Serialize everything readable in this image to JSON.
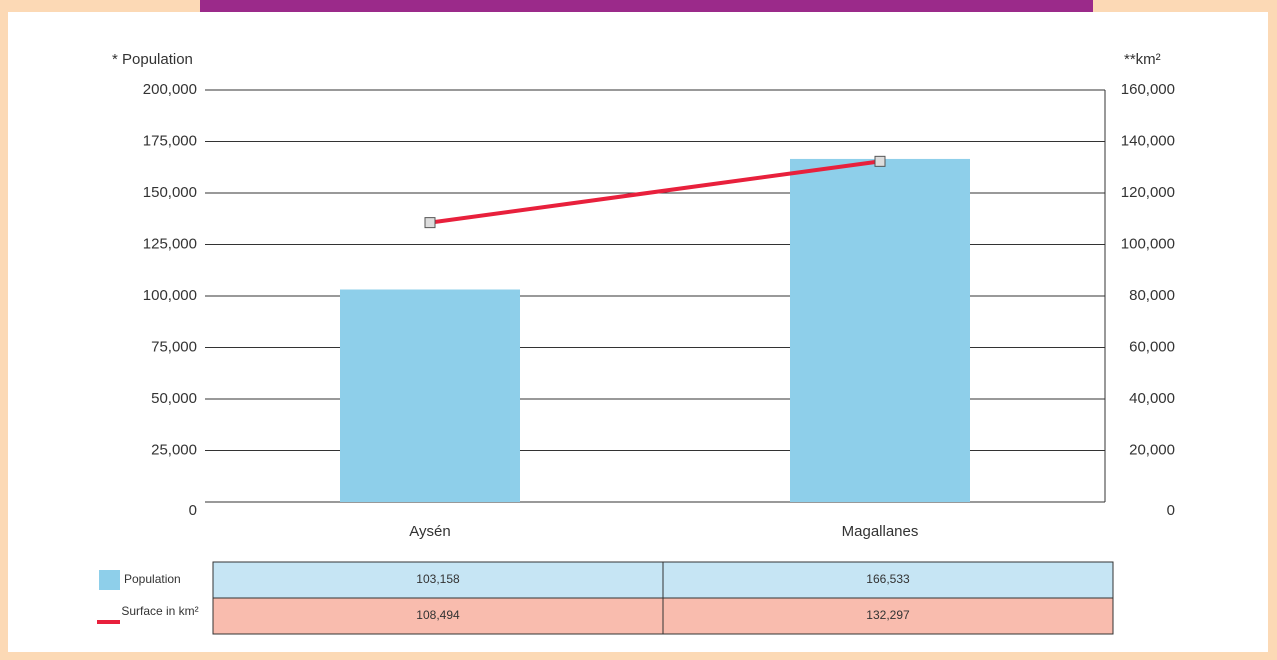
{
  "chart_data": {
    "type": "bar",
    "ylabel": "* Population",
    "y2label": "**km²",
    "categories": [
      "Aysén",
      "Magallanes"
    ],
    "series": [
      {
        "name": "Population",
        "type": "bar",
        "color": "#8ecfea",
        "values": [
          103158,
          166533
        ],
        "value_labels": [
          "103,158",
          "166,533"
        ]
      },
      {
        "name": "Surface in km²",
        "type": "line",
        "axis": "y2",
        "color": "#e8203c",
        "values": [
          108494,
          132297
        ],
        "value_labels": [
          "108,494",
          "132,297"
        ]
      }
    ],
    "ylim": [
      0,
      200000
    ],
    "yticks": [
      0,
      {
        "value": 25000,
        "label": "25,000"
      },
      {
        "value": 50000,
        "label": "50,000"
      },
      {
        "value": 75000,
        "label": "75,000"
      },
      {
        "value": 100000,
        "label": "100,000"
      },
      {
        "value": 125000,
        "label": "125,000"
      },
      {
        "value": 150000,
        "label": "150,000"
      },
      {
        "value": 175000,
        "label": "175,000"
      },
      {
        "value": 200000,
        "label": "200,000"
      }
    ],
    "y2lim": [
      0,
      160000
    ],
    "y2ticks": [
      0,
      {
        "value": 20000,
        "label": "20,000"
      },
      {
        "value": 40000,
        "label": "40,000"
      },
      {
        "value": 60000,
        "label": "60,000"
      },
      {
        "value": 80000,
        "label": "80,000"
      },
      {
        "value": 100000,
        "label": "100,000"
      },
      {
        "value": 120000,
        "label": "120,000"
      },
      {
        "value": 140000,
        "label": "140,000"
      },
      {
        "value": 160000,
        "label": "160,000"
      }
    ],
    "grid": true
  }
}
